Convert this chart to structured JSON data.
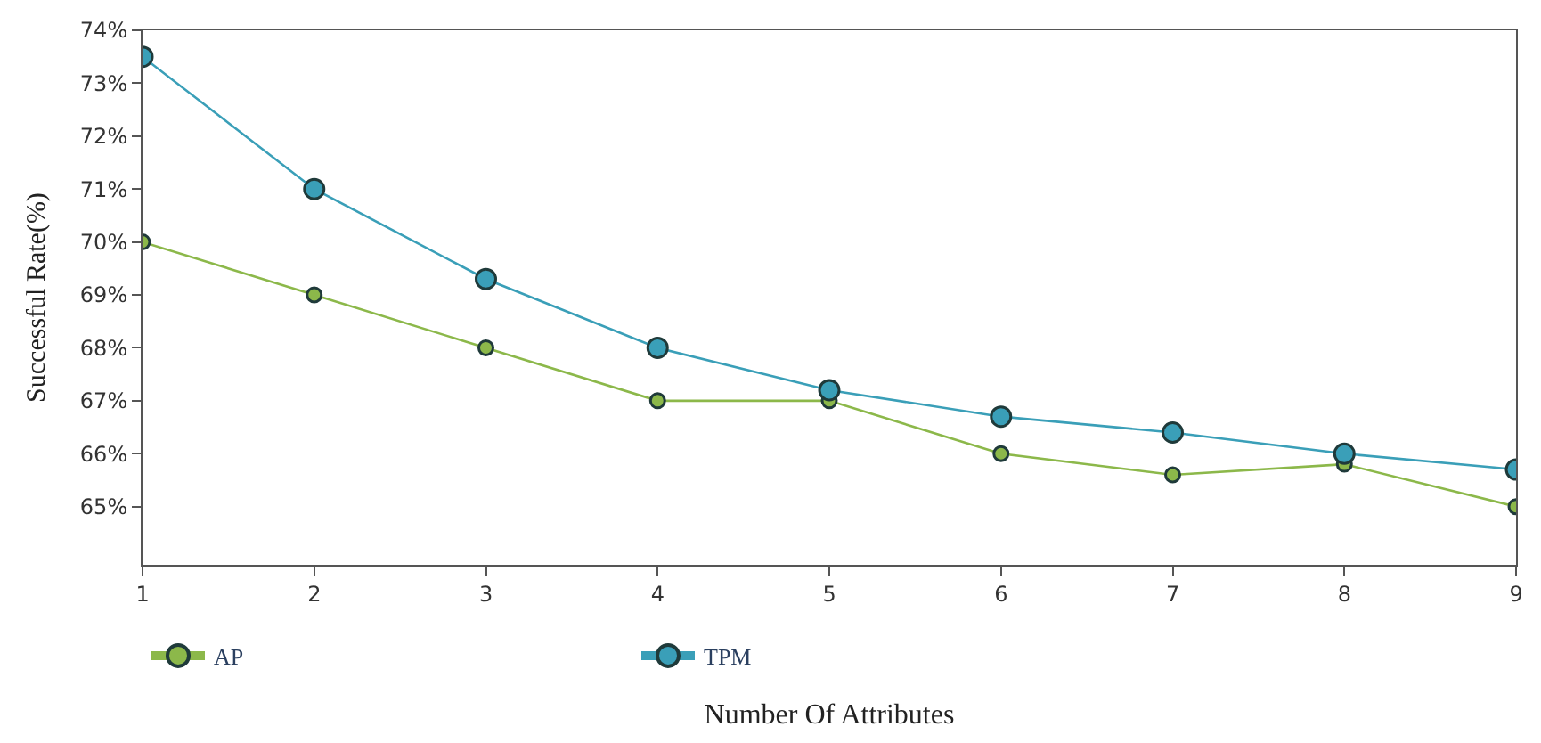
{
  "chart_data": {
    "type": "line",
    "xlabel": "Number Of Attributes",
    "ylabel": "Successful Rate(%)",
    "x": [
      1,
      2,
      3,
      4,
      5,
      6,
      7,
      8,
      9
    ],
    "series": [
      {
        "name": "AP",
        "color": "#8cb84a",
        "values": [
          70,
          69,
          68,
          67,
          67,
          66,
          65.6,
          65.8,
          65
        ]
      },
      {
        "name": "TPM",
        "color": "#3a9fb8",
        "values": [
          73.5,
          71,
          69.3,
          68,
          67.2,
          66.7,
          66.4,
          66.0,
          65.7
        ]
      }
    ],
    "xlim": [
      1,
      9
    ],
    "xticks": [
      1,
      2,
      3,
      4,
      5,
      6,
      7,
      8,
      9
    ],
    "ylim": [
      63.9,
      74
    ],
    "yticks": [
      {
        "value": 65,
        "label": "65%"
      },
      {
        "value": 66,
        "label": "66%"
      },
      {
        "value": 67,
        "label": "67%"
      },
      {
        "value": 68,
        "label": "68%"
      },
      {
        "value": 69,
        "label": "69%"
      },
      {
        "value": 70,
        "label": "70%"
      },
      {
        "value": 71,
        "label": "71%"
      },
      {
        "value": 72,
        "label": "72%"
      },
      {
        "value": 73,
        "label": "73%"
      },
      {
        "value": 74,
        "label": "74%"
      }
    ],
    "legend": "bottom left",
    "marker": "circle",
    "line_style": "solid"
  }
}
